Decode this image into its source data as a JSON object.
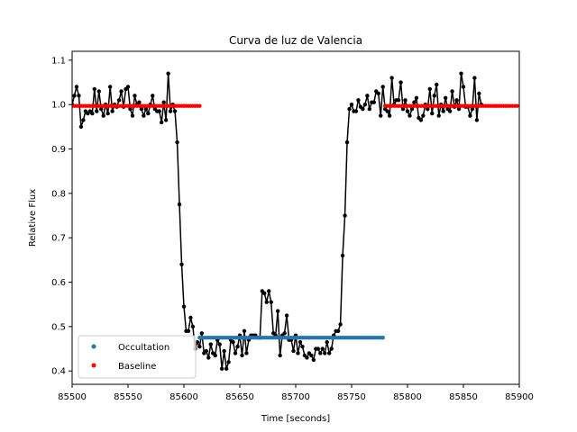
{
  "chart_data": {
    "type": "scatter",
    "title": "Curva de luz de Valencia",
    "xlabel": "Time [seconds]",
    "ylabel": "Relative Flux",
    "xlim": [
      85500,
      85900
    ],
    "ylim": [
      0.37,
      1.12
    ],
    "x_ticks": [
      85500,
      85550,
      85600,
      85650,
      85700,
      85750,
      85800,
      85850,
      85900
    ],
    "x_tick_labels": [
      "85500",
      "85550",
      "85600",
      "85650",
      "85700",
      "85750",
      "85800",
      "85850",
      "85900"
    ],
    "y_ticks": [
      0.4,
      0.5,
      0.6,
      0.7,
      0.8,
      0.9,
      1.0,
      1.1
    ],
    "y_tick_labels": [
      "0.4",
      "0.5",
      "0.6",
      "0.7",
      "0.8",
      "0.9",
      "1.0",
      "1.1"
    ],
    "grid": false,
    "legend_position": "lower-left",
    "legend": [
      {
        "label": "Occultation",
        "color": "#1f77b4",
        "marker": "dot"
      },
      {
        "label": "Baseline",
        "color": "#ff0000",
        "marker": "dot"
      }
    ],
    "series": [
      {
        "name": "data",
        "style": "line-with-markers",
        "color": "#000000",
        "x_start": 85500,
        "x_step": 2,
        "values": [
          1.0,
          1.02,
          1.04,
          1.02,
          0.95,
          0.965,
          0.985,
          0.98,
          0.985,
          0.98,
          1.035,
          0.985,
          1.03,
          0.99,
          0.975,
          1.0,
          0.98,
          1.04,
          0.985,
          1.0,
          0.995,
          1.01,
          1.03,
          0.995,
          1.035,
          1.04,
          0.99,
          0.975,
          1.02,
          1.0,
          1.005,
          0.99,
          0.975,
          0.99,
          0.98,
          1.0,
          1.02,
          0.99,
          0.985,
          0.985,
          0.96,
          1.005,
          0.965,
          1.07,
          0.985,
          1.0,
          0.985,
          0.915,
          0.775,
          0.64,
          0.545,
          0.49,
          0.49,
          0.52,
          0.5,
          0.45,
          0.465,
          0.455,
          0.485,
          0.44,
          0.445,
          0.43,
          0.46,
          0.44,
          0.435,
          0.47,
          0.46,
          0.405,
          0.445,
          0.405,
          0.42,
          0.47,
          0.465,
          0.44,
          0.455,
          0.48,
          0.435,
          0.49,
          0.44,
          0.47,
          0.48,
          0.48,
          0.48,
          0.475,
          0.475,
          0.58,
          0.575,
          0.555,
          0.58,
          0.555,
          0.485,
          0.48,
          0.535,
          0.435,
          0.48,
          0.485,
          0.525,
          0.47,
          0.47,
          0.445,
          0.48,
          0.44,
          0.465,
          0.455,
          0.435,
          0.43,
          0.44,
          0.435,
          0.425,
          0.45,
          0.45,
          0.44,
          0.45,
          0.44,
          0.465,
          0.44,
          0.45,
          0.48,
          0.49,
          0.49,
          0.505,
          0.66,
          0.75,
          0.915,
          0.99,
          1.0,
          0.985,
          0.985,
          1.01,
          0.995,
          0.99,
          1.0,
          1.02,
          0.99,
          1.005,
          1.005,
          1.03,
          1.025,
          0.975,
          1.04,
          0.99,
          0.985,
          0.975,
          1.06,
          1.0,
          1.01,
          1.01,
          1.05,
          0.99,
          1.01,
          0.985,
          0.975,
          0.99,
          1.005,
          1.015,
          0.97,
          0.965,
          0.975,
          1.0,
          0.99,
          1.035,
          0.98,
          1.02,
          1.045,
          0.975,
          1.0,
          0.985,
          1.015,
          0.99,
          0.985,
          1.03,
          0.995,
          1.01,
          0.99,
          1.07,
          1.04,
          0.995,
          0.995,
          0.975,
          0.99,
          1.06,
          0.965,
          1.025,
          1.0
        ]
      },
      {
        "name": "Occultation",
        "style": "markers",
        "color": "#1f77b4",
        "x_start": 85614,
        "x_step": 2,
        "count": 83,
        "y": 0.475
      },
      {
        "name": "Baseline",
        "style": "markers",
        "color": "#ff0000",
        "segments": [
          {
            "x_start": 85500,
            "x_step": 2,
            "count": 58,
            "y": 0.997
          },
          {
            "x_start": 85780,
            "x_step": 2,
            "count": 60,
            "y": 0.997
          }
        ]
      }
    ]
  }
}
